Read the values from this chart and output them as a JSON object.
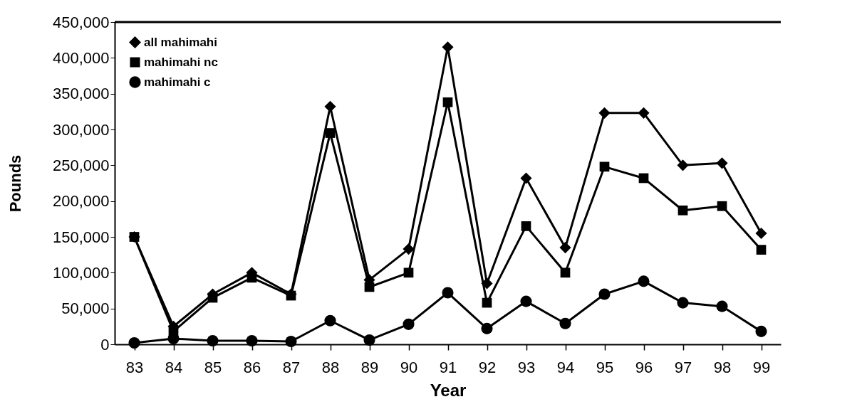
{
  "chart_data": {
    "type": "line",
    "xlabel": "Year",
    "ylabel": "Pounds",
    "categories": [
      "83",
      "84",
      "85",
      "86",
      "87",
      "88",
      "89",
      "90",
      "91",
      "92",
      "93",
      "94",
      "95",
      "96",
      "97",
      "98",
      "99"
    ],
    "series": [
      {
        "name": "all mahimahi",
        "color": "#000000",
        "marker": "diamond",
        "values": [
          150000,
          25000,
          70000,
          100000,
          70000,
          332000,
          90000,
          133000,
          415000,
          85000,
          232000,
          135000,
          323000,
          323000,
          250000,
          253000,
          155000
        ]
      },
      {
        "name": "mahimahi nc",
        "color": "#000000",
        "marker": "square",
        "values": [
          150000,
          18000,
          65000,
          93000,
          68000,
          295000,
          80000,
          100000,
          338000,
          58000,
          165000,
          100000,
          248000,
          232000,
          187000,
          193000,
          132000
        ]
      },
      {
        "name": "mahimahi c",
        "color": "#000000",
        "marker": "circle",
        "values": [
          2000,
          8000,
          5000,
          5000,
          4000,
          33000,
          6000,
          28000,
          72000,
          22000,
          60000,
          29000,
          70000,
          88000,
          58000,
          53000,
          18000
        ]
      }
    ],
    "ylim": [
      0,
      450000
    ],
    "yticks": [
      0,
      {
        "value": 50000,
        "label": "50,000"
      },
      {
        "value": 100000,
        "label": "100,000"
      },
      {
        "value": 150000,
        "label": "150,000"
      },
      {
        "value": 200000,
        "label": "200,000"
      },
      {
        "value": 250000,
        "label": "250,000"
      },
      {
        "value": 300000,
        "label": "300,000"
      },
      {
        "value": 350000,
        "label": "350,000"
      },
      {
        "value": 400000,
        "label": "400,000"
      },
      {
        "value": 450000,
        "label": "450,000"
      }
    ],
    "grid": false,
    "legend": "top left",
    "line_style": "solid"
  }
}
